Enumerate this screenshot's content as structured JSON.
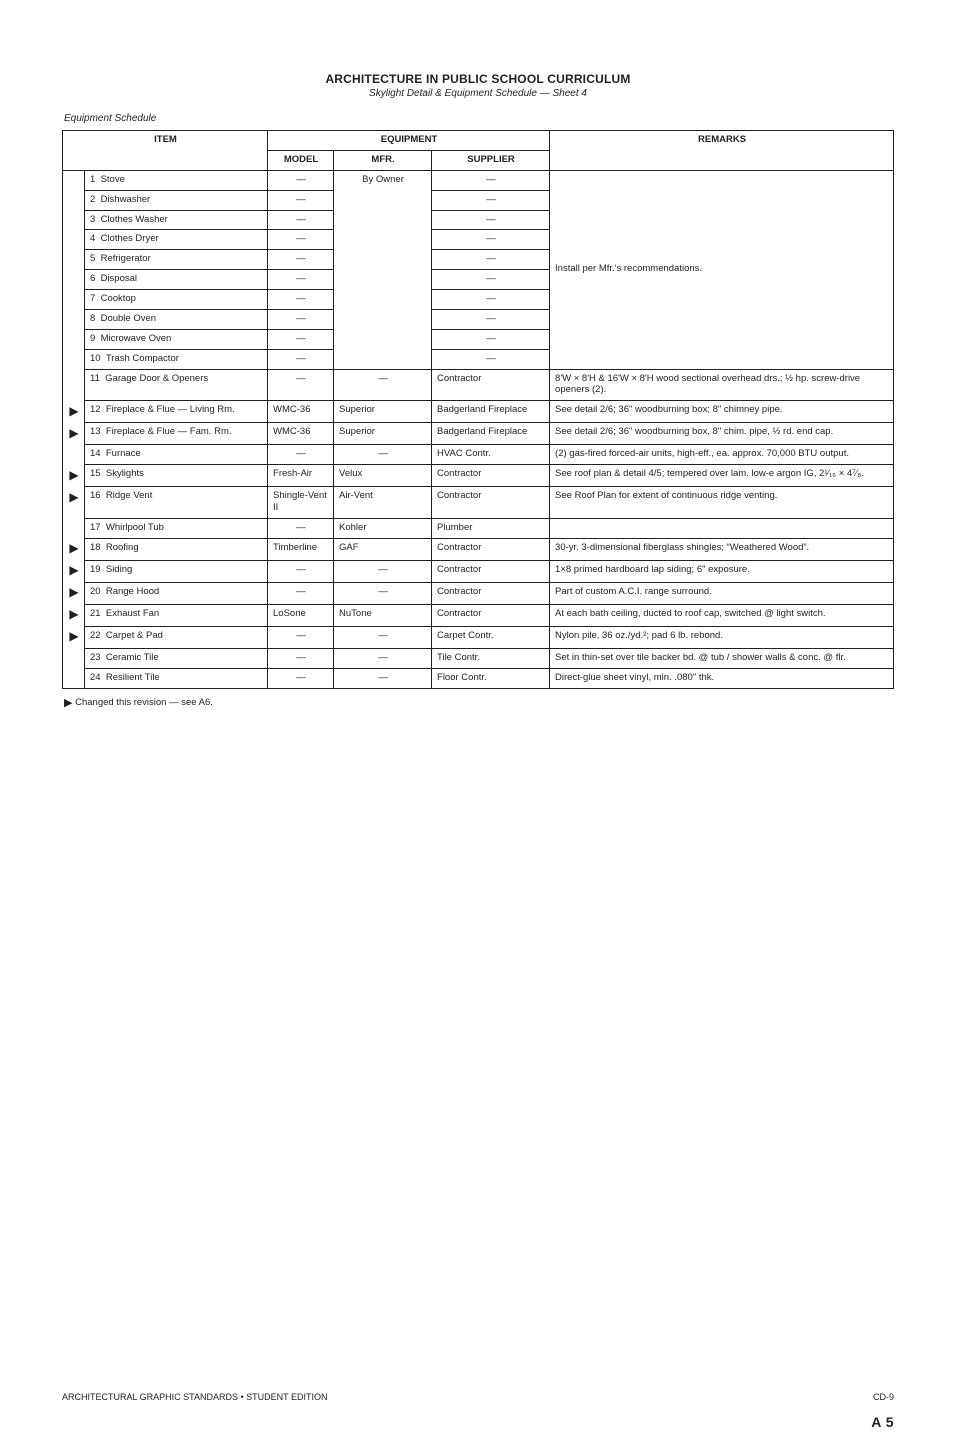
{
  "title": {
    "line1": "ARCHITECTURE IN PUBLIC SCHOOL CURRICULUM",
    "line2": "Skylight Detail & Equipment Schedule — Sheet 4"
  },
  "sectionHeading": "Equipment Schedule",
  "headers": {
    "item": "ITEM",
    "equipmentGroup": "EQUIPMENT",
    "model": "MODEL",
    "mfr": "MFR.",
    "supplier": "SUPPLIER",
    "remarks": "REMARKS"
  },
  "rows": [
    {
      "mark": "",
      "num": "1",
      "item": "Stove",
      "model": "—",
      "mfr_span": "By Owner",
      "supplier": "—",
      "remarks_span": "Install per Mfr.'s recommendations."
    },
    {
      "mark": "",
      "num": "2",
      "item": "Dishwasher",
      "model": "—",
      "supplier": "—"
    },
    {
      "mark": "",
      "num": "3",
      "item": "Clothes Washer",
      "model": "—",
      "supplier": "—"
    },
    {
      "mark": "",
      "num": "4",
      "item": "Clothes Dryer",
      "model": "—",
      "supplier": "—"
    },
    {
      "mark": "",
      "num": "5",
      "item": "Refrigerator",
      "model": "—",
      "supplier": "—"
    },
    {
      "mark": "",
      "num": "6",
      "item": "Disposal",
      "model": "—",
      "supplier": "—"
    },
    {
      "mark": "",
      "num": "7",
      "item": "Cooktop",
      "model": "—",
      "supplier": "—"
    },
    {
      "mark": "",
      "num": "8",
      "item": "Double Oven",
      "model": "—",
      "supplier": "—"
    },
    {
      "mark": "",
      "num": "9",
      "item": "Microwave Oven",
      "model": "—",
      "supplier": "—"
    },
    {
      "mark": "",
      "num": "10",
      "item": "Trash Compactor",
      "model": "—",
      "supplier": "—"
    },
    {
      "mark": "",
      "num": "11",
      "item": "Garage Door & Openers",
      "model": "—",
      "mfr": "—",
      "supplier": "Contractor",
      "remarks": "8'W × 8'H & 16'W × 8'H wood sectional overhead drs.; ½ hp. screw-drive openers (2)."
    },
    {
      "mark": "▶",
      "num": "12",
      "item": "Fireplace & Flue — Living Rm.",
      "model": "WMC-36",
      "mfr": "Superior",
      "supplier": "Badgerland Fireplace",
      "remarks": "See detail 2/6; 36\" woodburning box; 8\" chimney pipe."
    },
    {
      "mark": "▶",
      "num": "13",
      "item": "Fireplace & Flue — Fam. Rm.",
      "model": "WMC-36",
      "mfr": "Superior",
      "supplier": "Badgerland Fireplace",
      "remarks": "See detail 2/6; 36\" woodburning box,  8\" chim. pipe,  ½ rd. end cap."
    },
    {
      "mark": "",
      "num": "14",
      "item": "Furnace",
      "model": "—",
      "mfr": "—",
      "supplier": "HVAC Contr.",
      "remarks": "(2) gas-fired forced-air units, high-eff., ea. approx. 70,000 BTU output."
    },
    {
      "mark": "▶",
      "num": "15",
      "item": "Skylights",
      "model": "Fresh-Air",
      "mfr": "Velux",
      "supplier": "Contractor",
      "remarks": "See roof plan & detail 4/5; tempered over lam. low-e argon IG,  2¹⁄₁₆ × 4⁷⁄₈."
    },
    {
      "mark": "▶",
      "num": "16",
      "item": "Ridge Vent",
      "model": "Shingle-Vent II",
      "mfr": "Air-Vent",
      "supplier": "Contractor",
      "remarks": "See Roof Plan for extent of continuous ridge venting."
    },
    {
      "mark": "",
      "num": "17",
      "item": "Whirlpool Tub",
      "model": "—",
      "mfr": "Kohler",
      "supplier": "Plumber",
      "remarks": ""
    },
    {
      "mark": "▶",
      "num": "18",
      "item": "Roofing",
      "model": "Timberline",
      "mfr": "GAF",
      "supplier": "Contractor",
      "remarks": "30-yr. 3-dimensional fiberglass shingles;  “Weathered Wood”."
    },
    {
      "mark": "▶",
      "num": "19",
      "item": "Siding",
      "model": "—",
      "mfr": "—",
      "supplier": "Contractor",
      "remarks": "1×8 primed hardboard lap siding; 6\" exposure."
    },
    {
      "mark": "▶",
      "num": "20",
      "item": "Range Hood",
      "model": "—",
      "mfr": "—",
      "supplier": "Contractor",
      "remarks": "Part of custom A.C.I. range surround."
    },
    {
      "mark": "▶",
      "num": "21",
      "item": "Exhaust Fan",
      "model": "LoSone",
      "mfr": "NuTone",
      "supplier": "Contractor",
      "remarks": "At each bath ceiling, ducted to roof cap, switched @ light switch."
    },
    {
      "mark": "▶",
      "num": "22",
      "item": "Carpet & Pad",
      "model": "—",
      "mfr": "—",
      "supplier": "Carpet Contr.",
      "remarks": "Nylon pile, 36 oz./yd.²; pad 6 lb. rebond."
    },
    {
      "mark": "",
      "num": "23",
      "item": "Ceramic Tile",
      "model": "—",
      "mfr": "—",
      "supplier": "Tile Contr.",
      "remarks": "Set in thin-set over tile backer bd. @ tub / shower walls & conc. @ flr."
    },
    {
      "mark": "",
      "num": "24",
      "item": "Resilient Tile",
      "model": "—",
      "mfr": "—",
      "supplier": "Floor Contr.",
      "remarks": "Direct-glue sheet vinyl, min. .080\" thk."
    }
  ],
  "legend": "Changed this revision — see A6.",
  "footer": {
    "left": "ARCHITECTURAL GRAPHIC STANDARDS  •  STUDENT EDITION",
    "right": "CD-9"
  },
  "sheet": "A 5"
}
